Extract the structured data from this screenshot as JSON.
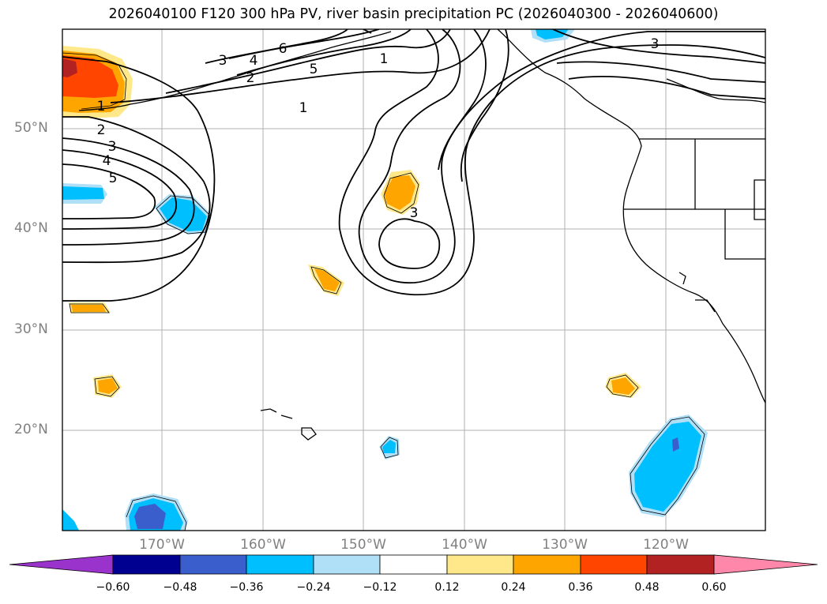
{
  "title": "2026040100 F120 300 hPa PV, river basin precipitation PC (2026040300 - 2026040600)",
  "lat_labels": [
    "50°N",
    "40°N",
    "30°N",
    "20°N"
  ],
  "lon_labels": [
    "170°W",
    "160°W",
    "150°W",
    "140°W",
    "130°W",
    "120°W"
  ],
  "contour_labels": [
    "1",
    "2",
    "3",
    "4",
    "5",
    "3",
    "4",
    "5",
    "6",
    "2",
    "1",
    "1",
    "3",
    "3"
  ],
  "colorbar": {
    "ticks": [
      "−0.60",
      "−0.48",
      "−0.36",
      "−0.24",
      "−0.12",
      "0.12",
      "0.24",
      "0.36",
      "0.48",
      "0.60"
    ],
    "colors": [
      "#9933cc",
      "#000090",
      "#3a5fcd",
      "#00bfff",
      "#b0e0f8",
      "#ffffff",
      "#ffe88a",
      "#ffa500",
      "#ff4500",
      "#b22222",
      "#ff88aa"
    ]
  }
}
